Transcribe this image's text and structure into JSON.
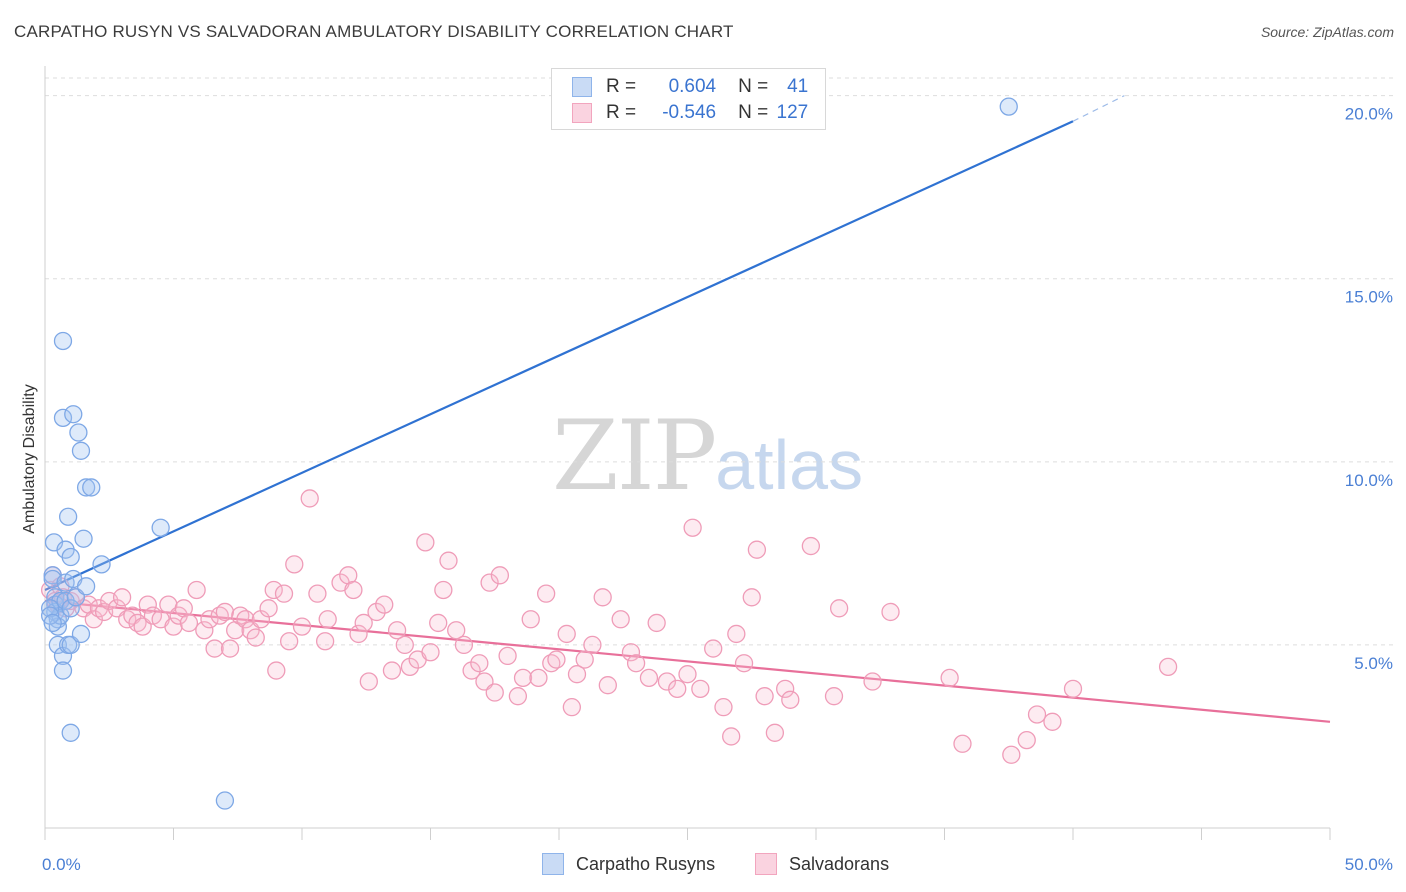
{
  "title": "CARPATHO RUSYN VS SALVADORAN AMBULATORY DISABILITY CORRELATION CHART",
  "source": "Source: ZipAtlas.com",
  "watermark": {
    "zip": "ZIP",
    "atlas": "atlas"
  },
  "legend_top": {
    "rows": [
      {
        "r_label": "R =",
        "r_value": "0.604",
        "n_label": "N =",
        "n_value": "41",
        "color": "#8fb4ea",
        "fill": "#c9dbf5"
      },
      {
        "r_label": "R =",
        "r_value": "-0.546",
        "n_label": "N =",
        "n_value": "127",
        "color": "#f2a5be",
        "fill": "#fad3e0"
      }
    ]
  },
  "legend_bottom": [
    {
      "label": "Carpatho Rusyns",
      "color": "#8fb4ea",
      "fill": "#c9dbf5"
    },
    {
      "label": "Salvadorans",
      "color": "#f2a5be",
      "fill": "#fad3e0"
    }
  ],
  "colors": {
    "blue_line": "#2f72d2",
    "pink_line": "#e8709a",
    "blue_point_stroke": "#7ea8e6",
    "blue_point_fill": "rgba(160,195,240,0.35)",
    "pink_point_stroke": "#ef9cb8",
    "pink_point_fill": "rgba(248,190,210,0.30)",
    "grid": "#dddddd",
    "tick_label": "#4a7fd4"
  },
  "chart_data": {
    "type": "scatter",
    "title": "CARPATHO RUSYN VS SALVADORAN AMBULATORY DISABILITY CORRELATION CHART",
    "xlabel": "",
    "ylabel": "Ambulatory Disability",
    "xlim": [
      0,
      50
    ],
    "ylim": [
      0,
      20.7
    ],
    "x_tick_labels": [
      "0.0%",
      "50.0%"
    ],
    "y_ticks": [
      5,
      10,
      15,
      20
    ],
    "y_tick_labels": [
      "5.0%",
      "10.0%",
      "15.0%",
      "20.0%"
    ],
    "grid": true,
    "legend_position": "top-center",
    "series": [
      {
        "name": "Carpatho Rusyns",
        "r": 0.604,
        "n": 41,
        "trend": {
          "x": [
            0,
            40
          ],
          "y": [
            6.5,
            19.3
          ],
          "dashed_extension_to": [
            42,
            20.0
          ]
        },
        "points": [
          [
            0.3,
            6.9
          ],
          [
            0.3,
            6.8
          ],
          [
            0.35,
            7.8
          ],
          [
            0.4,
            6.3
          ],
          [
            0.4,
            6.1
          ],
          [
            0.4,
            5.9
          ],
          [
            0.5,
            5.7
          ],
          [
            0.5,
            5.5
          ],
          [
            0.5,
            5.0
          ],
          [
            0.6,
            6.2
          ],
          [
            0.6,
            5.8
          ],
          [
            0.7,
            4.7
          ],
          [
            0.7,
            11.2
          ],
          [
            0.7,
            13.3
          ],
          [
            0.7,
            4.3
          ],
          [
            0.8,
            7.6
          ],
          [
            0.8,
            6.7
          ],
          [
            0.8,
            6.2
          ],
          [
            0.9,
            8.5
          ],
          [
            0.9,
            5.0
          ],
          [
            1.0,
            7.4
          ],
          [
            1.0,
            6.0
          ],
          [
            1.0,
            2.6
          ],
          [
            1.0,
            5.0
          ],
          [
            1.1,
            11.3
          ],
          [
            1.1,
            6.8
          ],
          [
            1.2,
            6.3
          ],
          [
            1.3,
            10.8
          ],
          [
            1.4,
            10.3
          ],
          [
            1.4,
            5.3
          ],
          [
            1.5,
            7.9
          ],
          [
            1.6,
            6.6
          ],
          [
            1.6,
            9.3
          ],
          [
            1.8,
            9.3
          ],
          [
            2.2,
            7.2
          ],
          [
            4.5,
            8.2
          ],
          [
            7.0,
            0.75
          ],
          [
            37.5,
            19.7
          ],
          [
            0.2,
            6.0
          ],
          [
            0.2,
            5.8
          ],
          [
            0.3,
            5.6
          ]
        ]
      },
      {
        "name": "Salvadorans",
        "r": -0.546,
        "n": 127,
        "trend": {
          "x": [
            0,
            50
          ],
          "y": [
            6.2,
            2.9
          ]
        },
        "points": [
          [
            0.2,
            6.5
          ],
          [
            0.3,
            6.9
          ],
          [
            0.4,
            6.2
          ],
          [
            0.5,
            6.1
          ],
          [
            0.6,
            6.6
          ],
          [
            0.7,
            6.3
          ],
          [
            0.8,
            6.0
          ],
          [
            1.0,
            6.2
          ],
          [
            1.2,
            6.3
          ],
          [
            1.5,
            6.0
          ],
          [
            1.7,
            6.1
          ],
          [
            1.9,
            5.7
          ],
          [
            2.1,
            6.0
          ],
          [
            2.3,
            5.9
          ],
          [
            2.5,
            6.2
          ],
          [
            2.8,
            6.0
          ],
          [
            3.0,
            6.3
          ],
          [
            3.2,
            5.7
          ],
          [
            3.4,
            5.8
          ],
          [
            3.6,
            5.6
          ],
          [
            3.8,
            5.5
          ],
          [
            4.0,
            6.1
          ],
          [
            4.2,
            5.8
          ],
          [
            4.5,
            5.7
          ],
          [
            4.8,
            6.1
          ],
          [
            5.0,
            5.5
          ],
          [
            5.2,
            5.8
          ],
          [
            5.4,
            6.0
          ],
          [
            5.6,
            5.6
          ],
          [
            5.9,
            6.5
          ],
          [
            6.2,
            5.4
          ],
          [
            6.4,
            5.7
          ],
          [
            6.6,
            4.9
          ],
          [
            6.8,
            5.8
          ],
          [
            7.0,
            5.9
          ],
          [
            7.2,
            4.9
          ],
          [
            7.4,
            5.4
          ],
          [
            7.6,
            5.8
          ],
          [
            7.8,
            5.7
          ],
          [
            8.0,
            5.4
          ],
          [
            8.2,
            5.2
          ],
          [
            8.4,
            5.7
          ],
          [
            8.7,
            6.0
          ],
          [
            8.9,
            6.5
          ],
          [
            9.0,
            4.3
          ],
          [
            9.3,
            6.4
          ],
          [
            9.5,
            5.1
          ],
          [
            9.7,
            7.2
          ],
          [
            10.0,
            5.5
          ],
          [
            10.3,
            9.0
          ],
          [
            10.6,
            6.4
          ],
          [
            10.9,
            5.1
          ],
          [
            11.0,
            5.7
          ],
          [
            11.5,
            6.7
          ],
          [
            11.8,
            6.9
          ],
          [
            12.0,
            6.5
          ],
          [
            12.2,
            5.3
          ],
          [
            12.4,
            5.6
          ],
          [
            12.6,
            4.0
          ],
          [
            12.9,
            5.9
          ],
          [
            13.2,
            6.1
          ],
          [
            13.5,
            4.3
          ],
          [
            13.7,
            5.4
          ],
          [
            14.0,
            5.0
          ],
          [
            14.2,
            4.4
          ],
          [
            14.5,
            4.6
          ],
          [
            14.8,
            7.8
          ],
          [
            15.0,
            4.8
          ],
          [
            15.3,
            5.6
          ],
          [
            15.5,
            6.5
          ],
          [
            15.7,
            7.3
          ],
          [
            16.0,
            5.4
          ],
          [
            16.3,
            5.0
          ],
          [
            16.6,
            4.3
          ],
          [
            16.9,
            4.5
          ],
          [
            17.1,
            4.0
          ],
          [
            17.3,
            6.7
          ],
          [
            17.5,
            3.7
          ],
          [
            17.7,
            6.9
          ],
          [
            18.0,
            4.7
          ],
          [
            18.4,
            3.6
          ],
          [
            18.6,
            4.1
          ],
          [
            18.9,
            5.7
          ],
          [
            19.2,
            4.1
          ],
          [
            19.5,
            6.4
          ],
          [
            19.7,
            4.5
          ],
          [
            19.9,
            4.6
          ],
          [
            20.3,
            5.3
          ],
          [
            20.5,
            3.3
          ],
          [
            20.7,
            4.2
          ],
          [
            21.0,
            4.6
          ],
          [
            21.3,
            5.0
          ],
          [
            21.7,
            6.3
          ],
          [
            21.9,
            3.9
          ],
          [
            22.4,
            5.7
          ],
          [
            22.8,
            4.8
          ],
          [
            23.0,
            4.5
          ],
          [
            23.5,
            4.1
          ],
          [
            23.8,
            5.6
          ],
          [
            24.2,
            4.0
          ],
          [
            24.6,
            3.8
          ],
          [
            25.0,
            4.2
          ],
          [
            25.2,
            8.2
          ],
          [
            25.5,
            3.8
          ],
          [
            26.0,
            4.9
          ],
          [
            26.4,
            3.3
          ],
          [
            26.7,
            2.5
          ],
          [
            26.9,
            5.3
          ],
          [
            27.2,
            4.5
          ],
          [
            27.5,
            6.3
          ],
          [
            27.7,
            7.6
          ],
          [
            28.0,
            3.6
          ],
          [
            28.4,
            2.6
          ],
          [
            28.8,
            3.8
          ],
          [
            29.0,
            3.5
          ],
          [
            29.8,
            7.7
          ],
          [
            30.7,
            3.6
          ],
          [
            30.9,
            6.0
          ],
          [
            32.2,
            4.0
          ],
          [
            32.9,
            5.9
          ],
          [
            35.2,
            4.1
          ],
          [
            35.7,
            2.3
          ],
          [
            37.6,
            2.0
          ],
          [
            38.2,
            2.4
          ],
          [
            38.6,
            3.1
          ],
          [
            39.2,
            2.9
          ],
          [
            40.0,
            3.8
          ],
          [
            43.7,
            4.4
          ]
        ]
      }
    ]
  }
}
